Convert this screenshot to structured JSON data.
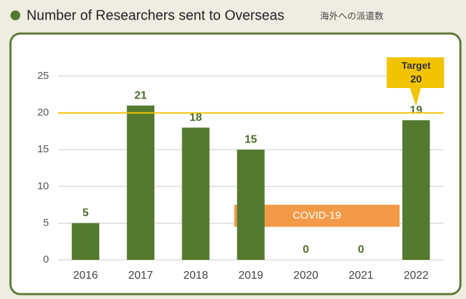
{
  "chart_data": {
    "type": "bar",
    "title": "Number of Researchers sent to Overseas",
    "subtitle": "海外への派遣数",
    "categories": [
      "2016",
      "2017",
      "2018",
      "2019",
      "2020",
      "2021",
      "2022"
    ],
    "values": [
      5,
      21,
      18,
      15,
      0,
      0,
      19
    ],
    "color": "#547a30",
    "ylim": [
      0,
      25
    ],
    "yticks": [
      0,
      5,
      10,
      15,
      20,
      25
    ],
    "grid": true,
    "target": {
      "label": "Target",
      "value": 20,
      "color": "#f2c300"
    },
    "annotation": {
      "text": "COVID-19",
      "color": "#f39a48"
    }
  }
}
